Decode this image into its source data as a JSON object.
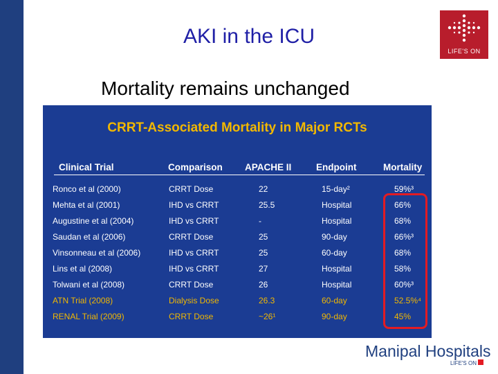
{
  "slide": {
    "title": "AKI in the ICU",
    "subtitle": "Mortality remains unchanged"
  },
  "logo": {
    "text": "LIFE'S ON"
  },
  "panel": {
    "title": "CRRT-Associated Mortality in Major RCTs",
    "headers": [
      "Clinical Trial",
      "Comparison",
      "APACHE II",
      "Endpoint",
      "Mortality"
    ],
    "rows": [
      {
        "trial": "Ronco et al (2000)",
        "comparison": "CRRT Dose",
        "apache": "22",
        "endpoint": "15-day²",
        "mortality": "59%³"
      },
      {
        "trial": "Mehta et al (2001)",
        "comparison": "IHD vs CRRT",
        "apache": "25.5",
        "endpoint": "Hospital",
        "mortality": "66%"
      },
      {
        "trial": "Augustine et al (2004)",
        "comparison": "IHD vs CRRT",
        "apache": "-",
        "endpoint": "Hospital",
        "mortality": "68%"
      },
      {
        "trial": "Saudan et al (2006)",
        "comparison": "CRRT Dose",
        "apache": "25",
        "endpoint": "90-day",
        "mortality": "66%³"
      },
      {
        "trial": "Vinsonneau et al (2006)",
        "comparison": "IHD vs CRRT",
        "apache": "25",
        "endpoint": "60-day",
        "mortality": "68%"
      },
      {
        "trial": "Lins et al (2008)",
        "comparison": "IHD vs CRRT",
        "apache": "27",
        "endpoint": "Hospital",
        "mortality": "58%"
      },
      {
        "trial": "Tolwani et al (2008)",
        "comparison": "CRRT Dose",
        "apache": "26",
        "endpoint": "Hospital",
        "mortality": "60%³"
      },
      {
        "trial": "ATN Trial (2008)",
        "comparison": "Dialysis Dose",
        "apache": "26.3",
        "endpoint": "60-day",
        "mortality": "52.5%⁴",
        "highlight": true
      },
      {
        "trial": "RENAL Trial (2009)",
        "comparison": "CRRT Dose",
        "apache": "~26¹",
        "endpoint": "90-day",
        "mortality": "45%",
        "highlight": true
      }
    ]
  },
  "brand": {
    "name": "Manipal Hospitals",
    "tagline": "LIFE'S ON"
  },
  "colors": {
    "title": "#1f1fa6",
    "panel_bg": "#1b3c93",
    "panel_title": "#f2b800",
    "highlight_row": "#f2b800",
    "box": "#e31b23",
    "left_bar": "#1f3f7f",
    "logo_bg": "#b81d2c"
  }
}
